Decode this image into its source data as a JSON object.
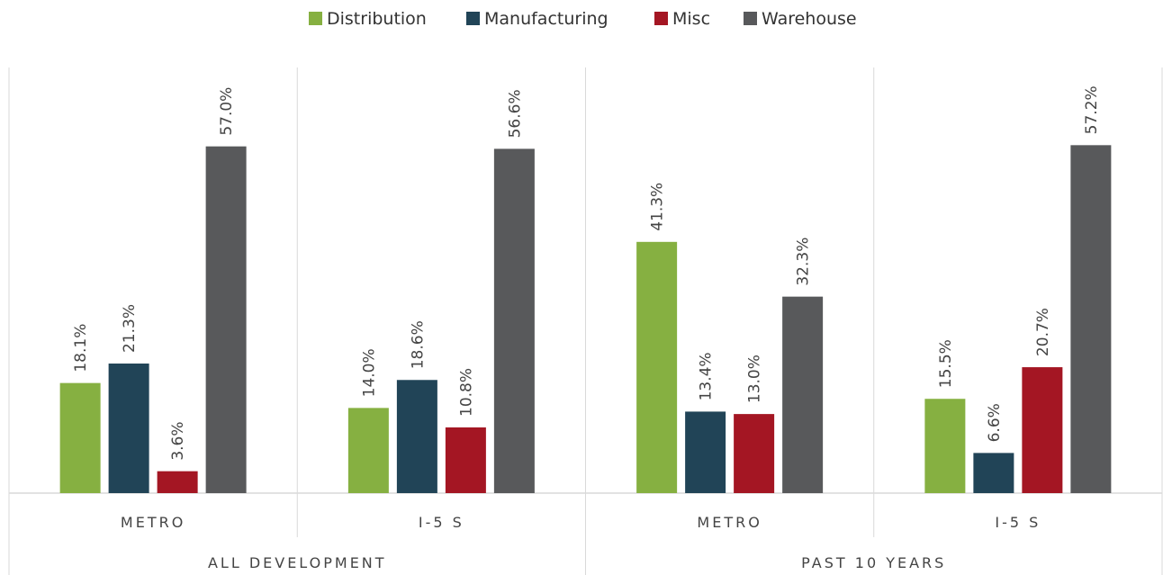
{
  "chart_data": {
    "type": "bar",
    "groups": [
      {
        "label": "ALL DEVELOPMENT",
        "categories": [
          "METRO",
          "I-5 S"
        ]
      },
      {
        "label": "PAST 10 YEARS",
        "categories": [
          "METRO",
          "I-5 S"
        ]
      }
    ],
    "categories": [
      "METRO",
      "I-5 S",
      "METRO",
      "I-5 S"
    ],
    "series": [
      {
        "name": "Distribution",
        "color": "#86B041",
        "values": [
          18.1,
          14.0,
          41.3,
          15.5
        ],
        "labels": [
          "18.1%",
          "14.0%",
          "41.3%",
          "15.5%"
        ]
      },
      {
        "name": "Manufacturing",
        "color": "#214457",
        "values": [
          21.3,
          18.6,
          13.4,
          6.6
        ],
        "labels": [
          "21.3%",
          "18.6%",
          "13.4%",
          "6.6%"
        ]
      },
      {
        "name": "Misc",
        "color": "#A41623",
        "values": [
          3.6,
          10.8,
          13.0,
          20.7
        ],
        "labels": [
          "3.6%",
          "10.8%",
          "13.0%",
          "20.7%"
        ]
      },
      {
        "name": "Warehouse",
        "color": "#58595B",
        "values": [
          57.0,
          56.6,
          32.3,
          57.2
        ],
        "labels": [
          "57.0%",
          "56.6%",
          "32.3%",
          "57.2%"
        ]
      }
    ],
    "ylim": [
      0,
      60
    ],
    "grid": false,
    "legend_position": "top-center",
    "xlabel": "",
    "ylabel": ""
  }
}
